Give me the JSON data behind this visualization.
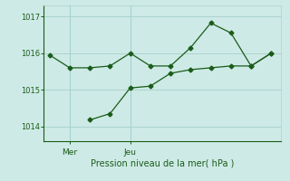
{
  "line1_x": [
    0,
    1,
    2,
    3,
    4,
    5,
    6,
    7,
    8,
    9,
    10,
    11
  ],
  "line1_y": [
    1015.95,
    1015.6,
    1015.6,
    1015.65,
    1016.0,
    1015.65,
    1015.65,
    1016.15,
    1016.82,
    1016.55,
    1015.65,
    1016.0
  ],
  "line2_x": [
    2,
    3,
    4,
    5,
    6,
    7,
    8,
    9,
    10,
    11
  ],
  "line2_y": [
    1014.18,
    1014.35,
    1015.05,
    1015.1,
    1015.45,
    1015.55,
    1015.6,
    1015.65,
    1015.65,
    1016.0
  ],
  "line_color": "#1a5c1a",
  "bg_color": "#ceeae6",
  "grid_color": "#aad4cf",
  "xlabel": "Pression niveau de la mer( hPa )",
  "yticks": [
    1014,
    1015,
    1016,
    1017
  ],
  "xtick_positions": [
    1,
    4
  ],
  "xtick_labels": [
    "Mer",
    "Jeu"
  ],
  "ylim": [
    1013.6,
    1017.3
  ],
  "xlim": [
    -0.3,
    11.5
  ],
  "figsize": [
    3.2,
    2.0
  ],
  "dpi": 100
}
